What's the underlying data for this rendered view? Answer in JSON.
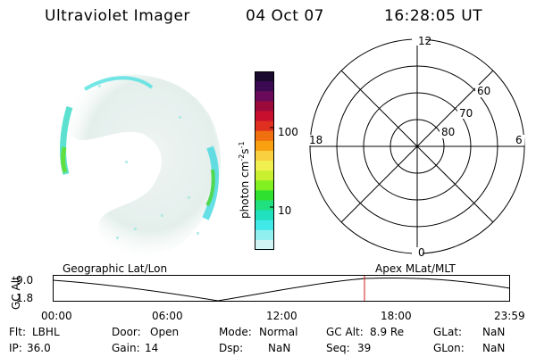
{
  "header": {
    "instrument": "Ultraviolet Imager",
    "date": "04 Oct 07",
    "time": "16:28:05 UT"
  },
  "colorbar": {
    "unit_base": "photon cm",
    "unit_exp1": "-2",
    "unit_s": "s",
    "unit_exp2": "-1",
    "ticks": [
      "100",
      "10"
    ],
    "colors": [
      "#1a0a2e",
      "#3b0a52",
      "#6a0a5a",
      "#9a0a3a",
      "#c8102e",
      "#e03020",
      "#f07010",
      "#f8a010",
      "#f8d040",
      "#f0f050",
      "#c8f030",
      "#80f020",
      "#30e030",
      "#20e080",
      "#20e0c0",
      "#40e8e8",
      "#90f0f0",
      "#d0f4f4"
    ]
  },
  "polar_plot": {
    "mlt_labels": {
      "top": "12",
      "bottom": "0",
      "left": "18",
      "right": "6"
    },
    "lat_labels": [
      "60",
      "70",
      "80"
    ]
  },
  "alt_plot": {
    "ylabel": "GC Alt",
    "y_ticks": [
      "9.0",
      "1.8"
    ],
    "left_title": "Geographic Lat/Lon",
    "right_title": "Apex MLat/MLT",
    "x_ticks": [
      "00:00",
      "06:00",
      "12:00",
      "18:00",
      "23:59"
    ],
    "marker_time": "16:28:05"
  },
  "info": {
    "flt_label": "Flt:",
    "flt_value": "LBHL",
    "ip_label": "IP:",
    "ip_value": "36.0",
    "door_label": "Door:",
    "door_value": "Open",
    "gain_label": "Gain:",
    "gain_value": "14",
    "mode_label": "Mode:",
    "mode_value": "Normal",
    "dsp_label": "Dsp:",
    "dsp_value": "NaN",
    "gcalt_label": "GC Alt:",
    "gcalt_value": "8.9 Re",
    "seq_label": "Seq:",
    "seq_value": "39",
    "glat_label": "GLat:",
    "glat_value": "NaN",
    "glon_label": "GLon:",
    "glon_value": "NaN"
  }
}
